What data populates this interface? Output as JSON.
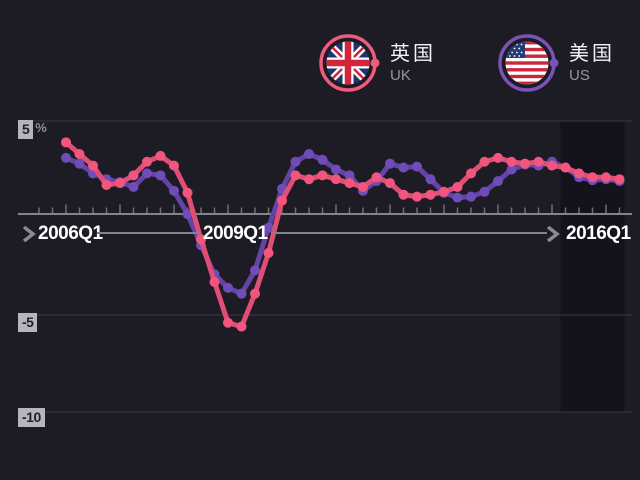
{
  "legend": {
    "items": [
      {
        "id": "uk",
        "name_zh": "英国",
        "name_en": "UK",
        "icon": "uk-flag-icon",
        "ring_color": "#ef5a7f"
      },
      {
        "id": "us",
        "name_zh": "美国",
        "name_en": "US",
        "icon": "us-flag-icon",
        "ring_color": "#7a52b8"
      }
    ]
  },
  "axis": {
    "y_labels": [
      {
        "text": "5",
        "suffix": "%"
      },
      {
        "text": "-5"
      },
      {
        "text": "-10"
      }
    ],
    "x_labels": [
      "2006Q1",
      "2009Q1",
      "2016Q1"
    ]
  },
  "colors": {
    "background": "#1d1c25",
    "band": "#14121b",
    "grid_line": "#3a3944",
    "axis_line": "#84838c",
    "tick": "#6f6e78",
    "label_box_bg": "#b6b5bc",
    "label_box_text": "#21202a",
    "muted_text": "#97959f",
    "white_text": "#ffffff",
    "uk_pink": "#ef5a7f",
    "us_purple": "#7a52b8"
  },
  "chart_data": {
    "type": "line",
    "x_unit": "quarter",
    "ylabel": "%",
    "ylim": [
      -10,
      5
    ],
    "yticks": [
      5,
      -5,
      -10
    ],
    "grid": "horizontal",
    "legend_position": "top",
    "xticks_labeled": [
      "2006Q1",
      "2009Q1",
      "2016Q1"
    ],
    "categories": [
      "2006Q1",
      "2006Q2",
      "2006Q3",
      "2006Q4",
      "2007Q1",
      "2007Q2",
      "2007Q3",
      "2007Q4",
      "2008Q1",
      "2008Q2",
      "2008Q3",
      "2008Q4",
      "2009Q1",
      "2009Q2",
      "2009Q3",
      "2009Q4",
      "2010Q1",
      "2010Q2",
      "2010Q3",
      "2010Q4",
      "2011Q1",
      "2011Q2",
      "2011Q3",
      "2011Q4",
      "2012Q1",
      "2012Q2",
      "2012Q3",
      "2012Q4",
      "2013Q1",
      "2013Q2",
      "2013Q3",
      "2013Q4",
      "2014Q1",
      "2014Q2",
      "2014Q3",
      "2014Q4",
      "2015Q1",
      "2015Q2",
      "2015Q3",
      "2015Q4",
      "2016Q1",
      "2016Q2"
    ],
    "series": [
      {
        "id": "uk",
        "name": "UK",
        "name_zh": "英国",
        "color": "#ef5a7f",
        "line_color": "#e04e76",
        "dot_color": "#f2567f",
        "values": [
          3.9,
          3.3,
          2.7,
          1.7,
          1.8,
          2.2,
          2.9,
          3.2,
          2.7,
          1.3,
          -1.1,
          -3.3,
          -5.4,
          -5.6,
          -3.9,
          -1.8,
          0.9,
          2.2,
          2.0,
          2.2,
          2.0,
          1.8,
          1.6,
          2.1,
          1.8,
          1.2,
          1.1,
          1.2,
          1.35,
          1.6,
          2.3,
          2.9,
          3.1,
          2.9,
          2.8,
          2.9,
          2.7,
          2.6,
          2.3,
          2.1,
          2.1,
          2.0
        ]
      },
      {
        "id": "us",
        "name": "US",
        "name_zh": "美国",
        "color": "#7a52b8",
        "line_color": "#6343a6",
        "dot_color": "#6f4cb8",
        "values": [
          3.1,
          2.8,
          2.3,
          2.0,
          1.85,
          1.6,
          2.3,
          2.2,
          1.4,
          0.2,
          -1.4,
          -2.9,
          -3.6,
          -3.9,
          -2.7,
          -0.5,
          1.5,
          2.9,
          3.3,
          3.0,
          2.5,
          2.2,
          1.4,
          1.9,
          2.8,
          2.6,
          2.65,
          2.0,
          1.3,
          1.05,
          1.1,
          1.35,
          1.9,
          2.5,
          2.75,
          2.7,
          2.9,
          2.6,
          2.1,
          1.95,
          2.0,
          1.9
        ]
      }
    ],
    "highlight_band": {
      "from_category": "2015Q2",
      "to_category": "2016Q2",
      "from_index": 37,
      "to_index": 41,
      "color": "#14121b"
    }
  }
}
